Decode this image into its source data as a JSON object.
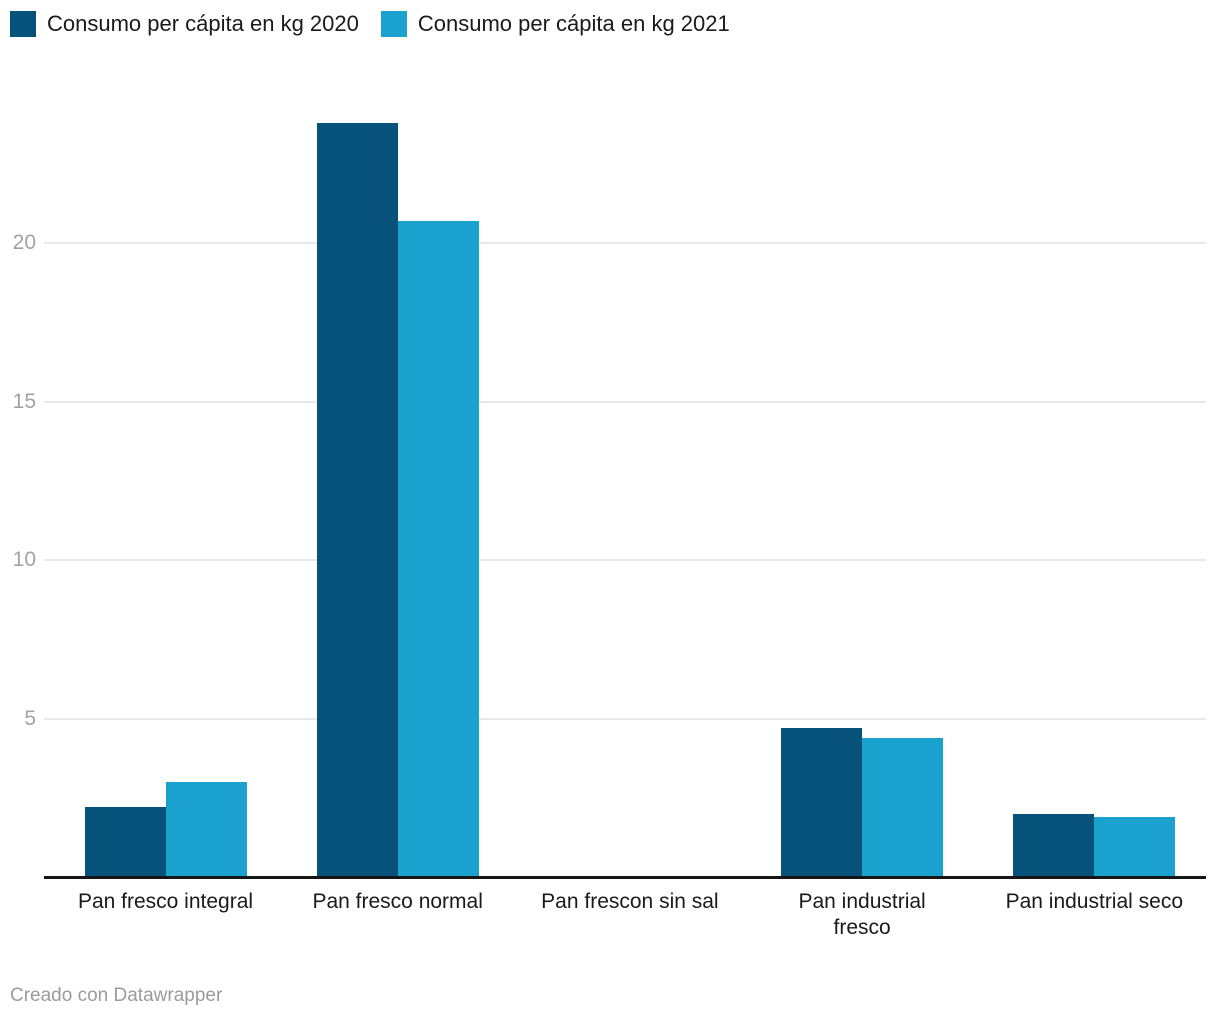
{
  "chart_data": {
    "type": "bar",
    "categories": [
      "Pan fresco integral",
      "Pan fresco normal",
      "Pan frescon sin sal",
      "Pan industrial fresco",
      "Pan industrial seco"
    ],
    "series": [
      {
        "name": "Consumo per cápita en kg 2020",
        "color": "#06527a",
        "values": [
          2.2,
          23.8,
          0,
          4.7,
          2.0
        ]
      },
      {
        "name": "Consumo per cápita en kg 2021",
        "color": "#1aa1ce",
        "values": [
          3.0,
          20.7,
          0,
          4.4,
          1.9
        ]
      }
    ],
    "yticks": [
      5,
      10,
      15,
      20
    ],
    "ylim": [
      0,
      24.5
    ],
    "grid": "horizontal-only",
    "legend_position": "top-left",
    "ylabel": "",
    "xlabel": ""
  },
  "footer": {
    "credit": "Creado con Datawrapper"
  },
  "colors": {
    "bar_2020": "#06527a",
    "bar_2021": "#1aa1ce",
    "axis_line": "#161616",
    "gridline": "#e9e9e9",
    "tick_label": "#a2a2a2",
    "category_label": "#1a1a1a",
    "legend_label": "#1a1a1a",
    "credit_text": "#9b9b9b",
    "background": "#ffffff"
  }
}
